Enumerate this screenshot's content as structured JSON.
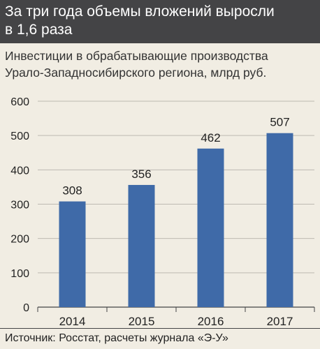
{
  "header": {
    "title_line1": "За три года объемы вложений выросли",
    "title_line2": "в 1,6 раза",
    "background": "#444446"
  },
  "subtitle": {
    "line1": "Инвестиции в обрабатывающие производства",
    "line2": "Урало-Западносибирского региона, млрд руб."
  },
  "source": "Источник: Росстат, расчеты журнала «Э-У»",
  "chart_data": {
    "type": "bar",
    "categories": [
      "2014",
      "2015",
      "2016",
      "2017"
    ],
    "values": [
      308,
      356,
      462,
      507
    ],
    "value_labels": [
      "308",
      "356",
      "462",
      "507"
    ],
    "ylim": [
      0,
      600
    ],
    "yticks": [
      "0",
      "100",
      "200",
      "300",
      "400",
      "500",
      "600"
    ],
    "grid": true,
    "bar_color": "#3f6aa8",
    "xlabel": "",
    "ylabel": ""
  }
}
